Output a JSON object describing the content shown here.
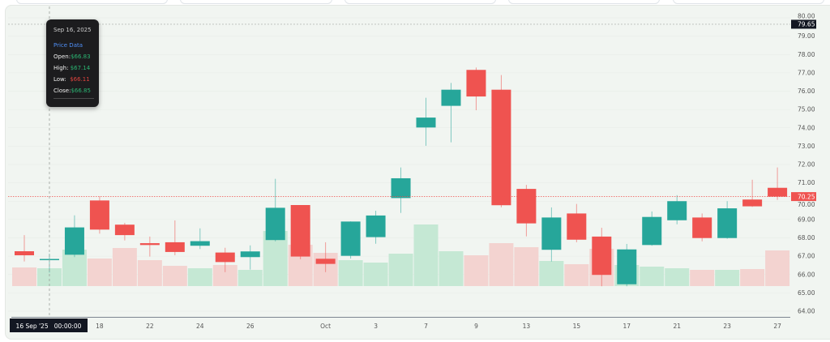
{
  "chart_data": {
    "type": "candlestick",
    "y_axis": {
      "range": [
        64,
        80
      ],
      "ticks": [
        "80.00",
        "79.00",
        "78.00",
        "77.00",
        "76.00",
        "75.00",
        "74.00",
        "73.00",
        "72.00",
        "71.00",
        "70.00",
        "69.00",
        "68.00",
        "67.00",
        "66.00",
        "65.00",
        "64.00"
      ],
      "position": "right"
    },
    "x_axis": {
      "ticks": [
        {
          "label": "18",
          "date": "2025-09-18"
        },
        {
          "label": "22",
          "date": "2025-09-22"
        },
        {
          "label": "24",
          "date": "2025-09-24"
        },
        {
          "label": "26",
          "date": "2025-09-26"
        },
        {
          "label": "Oct",
          "date": "2025-10-01"
        },
        {
          "label": "3",
          "date": "2025-10-03"
        },
        {
          "label": "7",
          "date": "2025-10-07"
        },
        {
          "label": "9",
          "date": "2025-10-09"
        },
        {
          "label": "13",
          "date": "2025-10-13"
        },
        {
          "label": "15",
          "date": "2025-10-15"
        },
        {
          "label": "17",
          "date": "2025-10-17"
        },
        {
          "label": "21",
          "date": "2025-10-21"
        },
        {
          "label": "23",
          "date": "2025-10-23"
        },
        {
          "label": "27",
          "date": "2025-10-27"
        }
      ]
    },
    "candles": [
      {
        "date": "2025-09-15",
        "o": 67.27,
        "h": 68.15,
        "l": 66.71,
        "c": 67.05,
        "v": 23
      },
      {
        "date": "2025-09-16",
        "o": 66.83,
        "h": 67.14,
        "l": 66.11,
        "c": 66.85,
        "v": 22
      },
      {
        "date": "2025-09-17",
        "o": 67.08,
        "h": 69.23,
        "l": 66.95,
        "c": 68.57,
        "v": 45
      },
      {
        "date": "2025-09-18",
        "o": 70.04,
        "h": 70.26,
        "l": 68.23,
        "c": 68.45,
        "v": 34
      },
      {
        "date": "2025-09-19",
        "o": 68.72,
        "h": 68.82,
        "l": 67.86,
        "c": 68.15,
        "v": 47
      },
      {
        "date": "2025-09-22",
        "o": 67.71,
        "h": 68.07,
        "l": 66.98,
        "c": 67.61,
        "v": 32
      },
      {
        "date": "2025-09-23",
        "o": 67.76,
        "h": 68.95,
        "l": 67.05,
        "c": 67.23,
        "v": 25
      },
      {
        "date": "2025-09-24",
        "o": 67.57,
        "h": 68.52,
        "l": 67.39,
        "c": 67.82,
        "v": 22
      },
      {
        "date": "2025-09-25",
        "o": 67.2,
        "h": 67.46,
        "l": 66.13,
        "c": 66.68,
        "v": 26
      },
      {
        "date": "2025-09-26",
        "o": 66.95,
        "h": 67.59,
        "l": 66.27,
        "c": 67.26,
        "v": 20
      },
      {
        "date": "2025-09-29",
        "o": 67.88,
        "h": 71.22,
        "l": 67.81,
        "c": 69.64,
        "v": 68
      },
      {
        "date": "2025-09-30",
        "o": 69.79,
        "h": 69.79,
        "l": 66.83,
        "c": 66.98,
        "v": 51
      },
      {
        "date": "2025-10-01",
        "o": 66.86,
        "h": 67.76,
        "l": 66.13,
        "c": 66.58,
        "v": 41
      },
      {
        "date": "2025-10-02",
        "o": 67.02,
        "h": 68.9,
        "l": 66.87,
        "c": 68.89,
        "v": 32
      },
      {
        "date": "2025-10-03",
        "o": 68.04,
        "h": 69.48,
        "l": 67.68,
        "c": 69.22,
        "v": 29
      },
      {
        "date": "2025-10-06",
        "o": 70.17,
        "h": 71.84,
        "l": 69.36,
        "c": 71.25,
        "v": 40
      },
      {
        "date": "2025-10-07",
        "o": 74.02,
        "h": 75.64,
        "l": 73.02,
        "c": 74.56,
        "v": 76
      },
      {
        "date": "2025-10-08",
        "o": 75.2,
        "h": 76.45,
        "l": 73.21,
        "c": 76.08,
        "v": 43
      },
      {
        "date": "2025-10-09",
        "o": 77.16,
        "h": 77.29,
        "l": 74.96,
        "c": 75.71,
        "v": 38
      },
      {
        "date": "2025-10-10",
        "o": 76.08,
        "h": 76.88,
        "l": 69.67,
        "c": 69.78,
        "v": 53
      },
      {
        "date": "2025-10-13",
        "o": 70.67,
        "h": 70.89,
        "l": 68.08,
        "c": 68.79,
        "v": 48
      },
      {
        "date": "2025-10-14",
        "o": 67.35,
        "h": 69.66,
        "l": 66.71,
        "c": 69.11,
        "v": 31
      },
      {
        "date": "2025-10-15",
        "o": 69.33,
        "h": 69.85,
        "l": 67.76,
        "c": 67.9,
        "v": 27
      },
      {
        "date": "2025-10-16",
        "o": 68.07,
        "h": 68.55,
        "l": 65.36,
        "c": 65.98,
        "v": 46
      },
      {
        "date": "2025-10-17",
        "o": 65.47,
        "h": 67.67,
        "l": 65.36,
        "c": 67.37,
        "v": 26
      },
      {
        "date": "2025-10-20",
        "o": 67.61,
        "h": 69.44,
        "l": 67.57,
        "c": 69.14,
        "v": 24
      },
      {
        "date": "2025-10-21",
        "o": 68.96,
        "h": 70.33,
        "l": 68.74,
        "c": 70.0,
        "v": 22
      },
      {
        "date": "2025-10-22",
        "o": 69.11,
        "h": 69.33,
        "l": 67.81,
        "c": 67.99,
        "v": 20
      },
      {
        "date": "2025-10-23",
        "o": 67.99,
        "h": 70.0,
        "l": 67.95,
        "c": 69.61,
        "v": 20
      },
      {
        "date": "2025-10-24",
        "o": 70.09,
        "h": 71.17,
        "l": 69.69,
        "c": 69.72,
        "v": 21
      },
      {
        "date": "2025-10-27",
        "o": 70.73,
        "h": 71.84,
        "l": 70.07,
        "c": 70.25,
        "v": 44
      }
    ],
    "last_price": "70.25",
    "crosshair": {
      "price": "79.65",
      "time_label": "16 Sep '25   00:00:00"
    },
    "grid": true,
    "colors": {
      "up": "#26a69a",
      "down": "#ef5350",
      "volume_up": "#c5e8d4",
      "volume_down": "#f3d3d0",
      "crosshair_label": "#131722"
    }
  },
  "tooltip": {
    "date": "Sep 16, 2025",
    "header": "Price Data",
    "open_label": "Open:",
    "open": "$66.83",
    "high_label": "High:",
    "high": "$67.14",
    "low_label": "Low:",
    "low": "$66.11",
    "close_label": "Close:",
    "close": "$66.85"
  }
}
